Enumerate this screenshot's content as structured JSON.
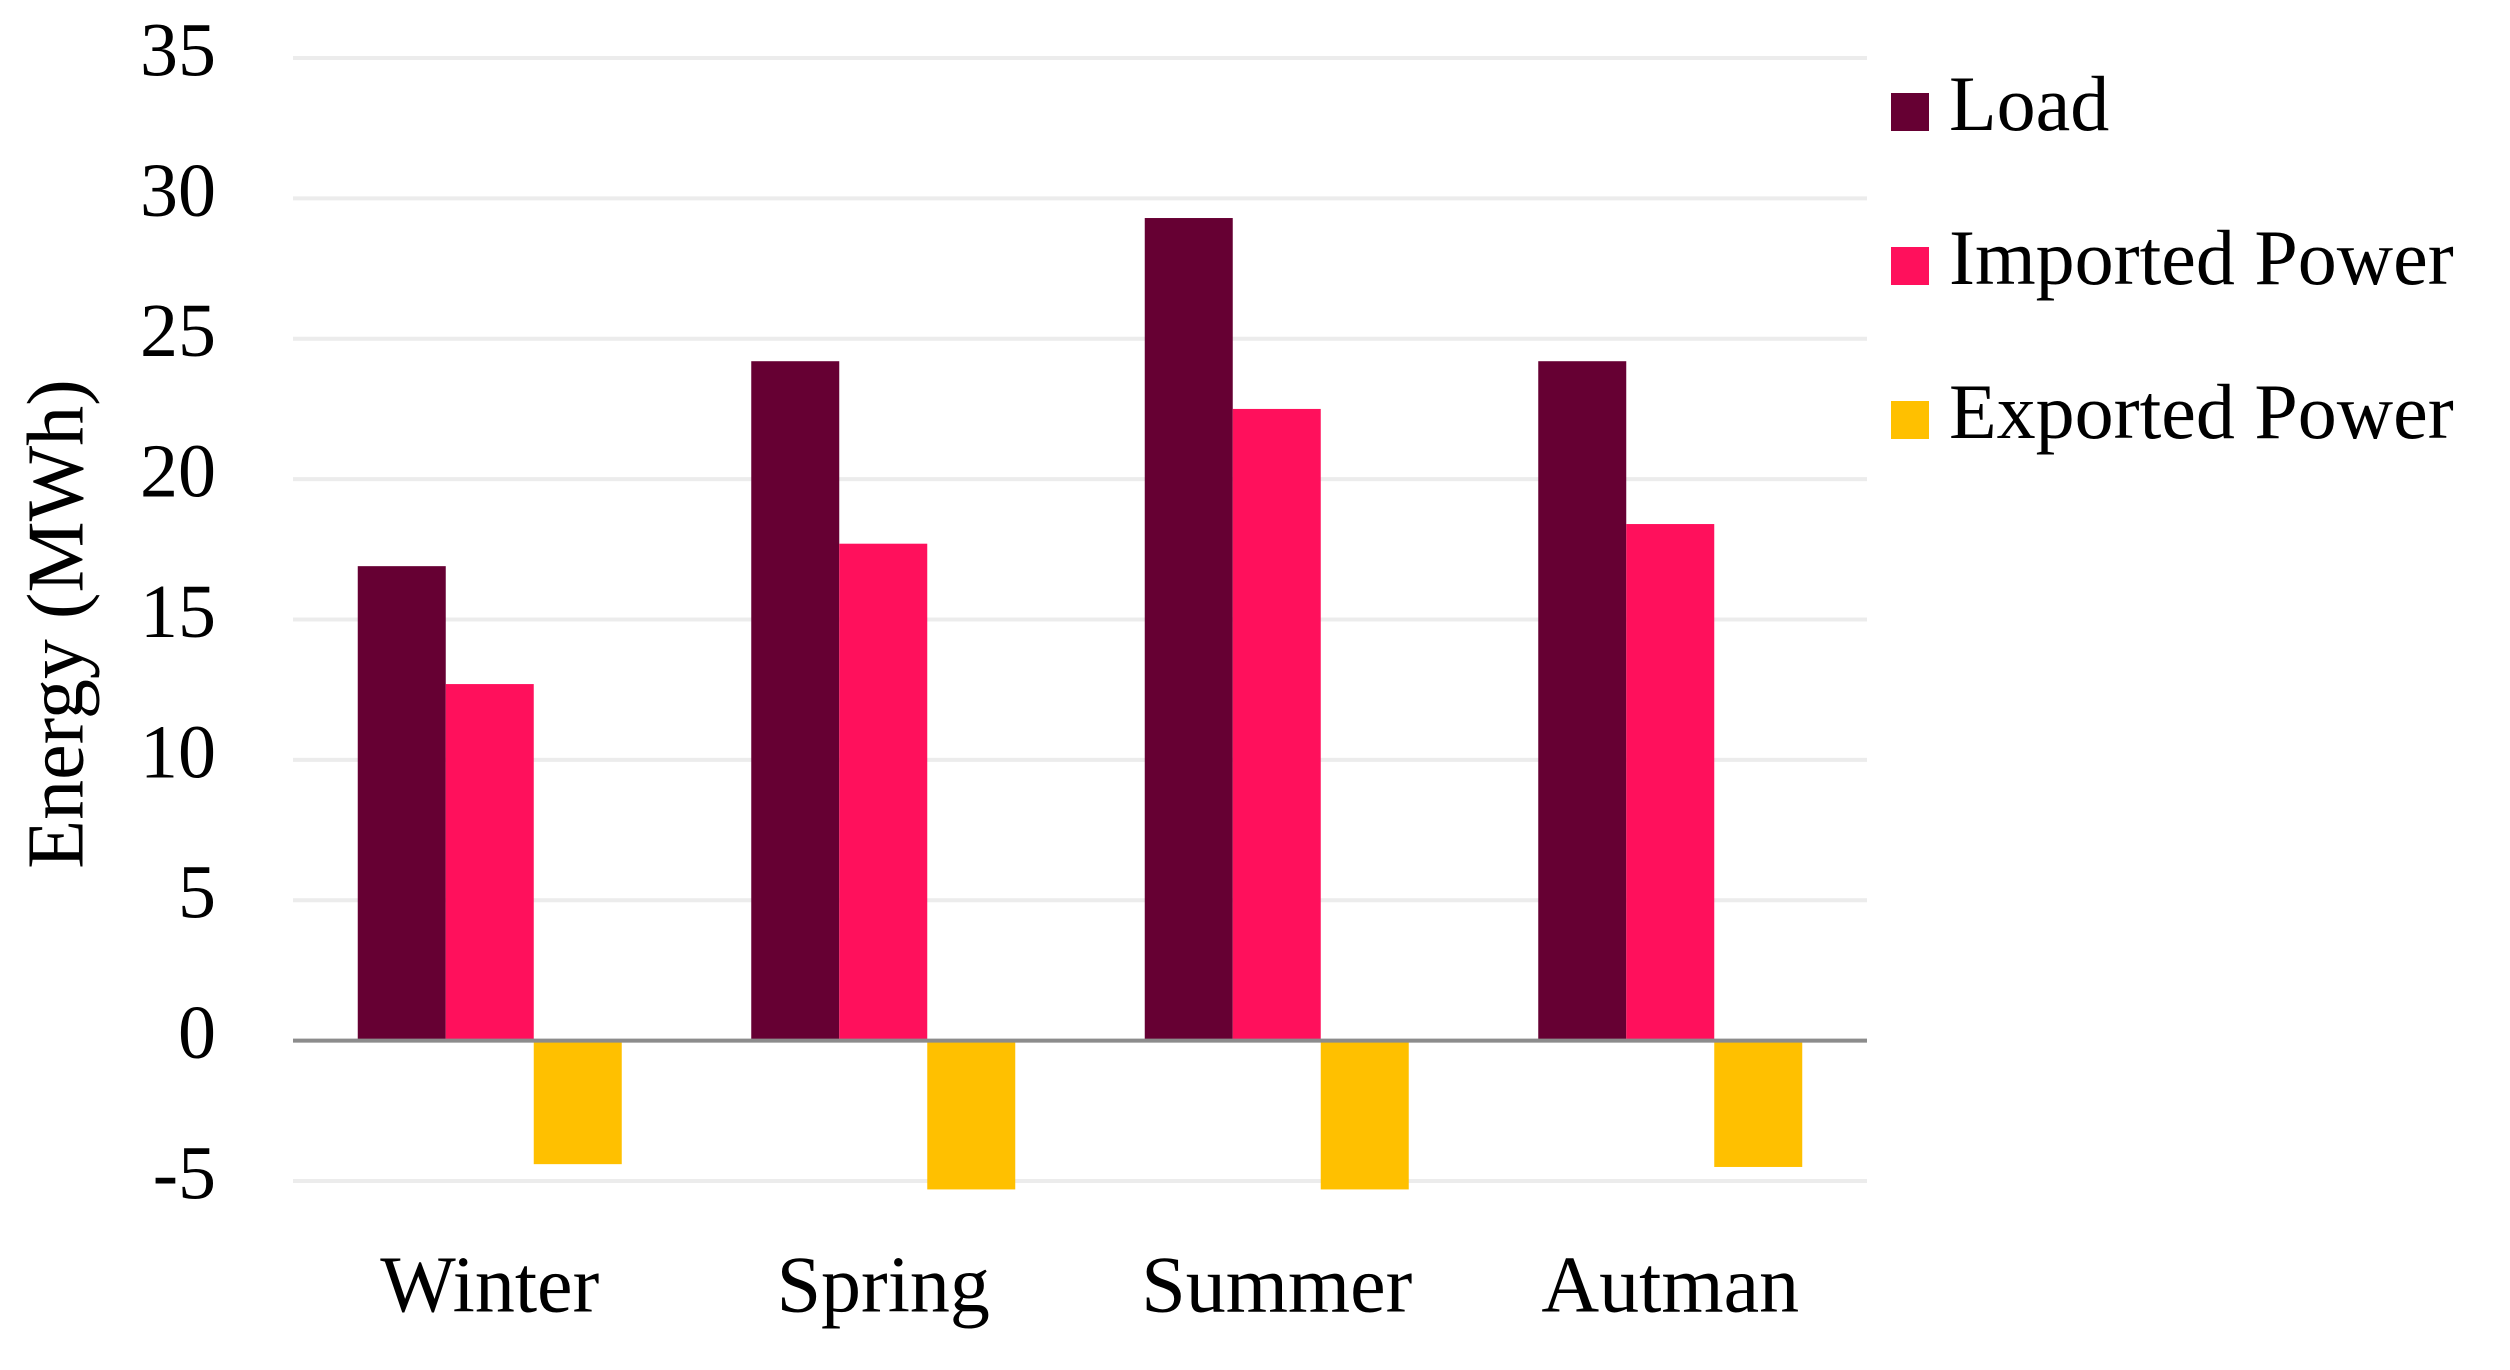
{
  "chart_data": {
    "type": "bar",
    "y_label": "Energy (MWh)",
    "categories": [
      "Winter",
      "Spring",
      "Summer",
      "Autman"
    ],
    "series": [
      {
        "name": "Load",
        "color": "#660033",
        "values": [
          16.9,
          24.2,
          29.3,
          24.2
        ]
      },
      {
        "name": "Imported Power",
        "color": "#ff105c",
        "values": [
          12.7,
          17.7,
          22.5,
          18.4
        ]
      },
      {
        "name": "Exported Power",
        "color": "#ffc000",
        "values": [
          -4.4,
          -5.3,
          -5.3,
          -4.5
        ]
      }
    ],
    "ylim": [
      -5,
      35
    ],
    "yticks": [
      -5,
      0,
      5,
      10,
      15,
      20,
      25,
      30,
      35
    ],
    "grid": true,
    "legend": "right"
  }
}
